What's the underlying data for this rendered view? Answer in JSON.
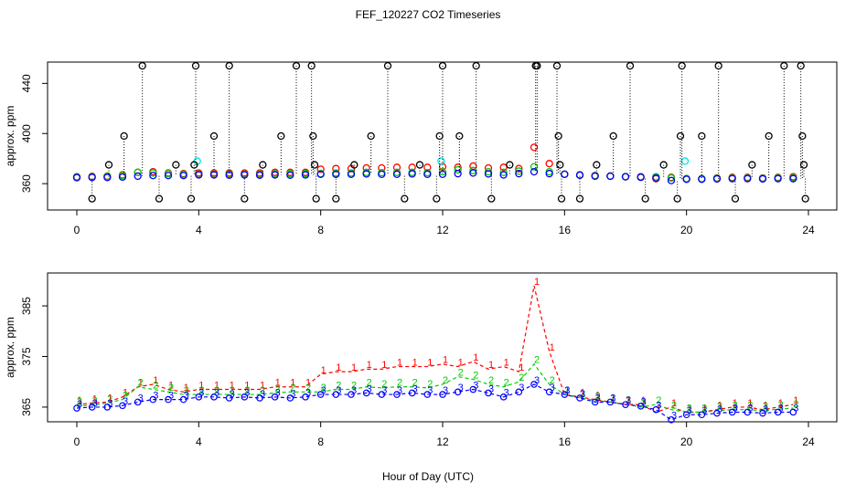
{
  "chart_data": [
    {
      "type": "scatter",
      "title": "FEF_120227  CO2 Timeseries",
      "ylabel": "approx. ppm",
      "xlim": [
        -0.96,
        24.93
      ],
      "ylim": [
        339,
        457
      ],
      "xticks": [
        0,
        4,
        8,
        12,
        16,
        20,
        24
      ],
      "yticks": [
        360,
        400,
        440
      ],
      "x": [
        0,
        0.5,
        1,
        1.5,
        2,
        2.5,
        3,
        3.5,
        4,
        4.5,
        5,
        5.5,
        6,
        6.5,
        7,
        7.5,
        8,
        8.5,
        9,
        9.5,
        10,
        10.5,
        11,
        11.5,
        12,
        12.5,
        13,
        13.5,
        14,
        14.5,
        15,
        15.5,
        16,
        16.5,
        17,
        17.5,
        18,
        18.5,
        19,
        19.5,
        20,
        20.5,
        21,
        21.5,
        22,
        22.5,
        23,
        23.5
      ],
      "series": [
        {
          "color": "#ff0000",
          "values": [
            365.5,
            365.8,
            366,
            367,
            369,
            369.5,
            368.5,
            368,
            368.5,
            368.5,
            368.5,
            368.5,
            368.5,
            369,
            369,
            369,
            371.5,
            372,
            372,
            372.5,
            372.5,
            373,
            373,
            373,
            373.5,
            373,
            374,
            372.5,
            373,
            372,
            389,
            376,
            367.5,
            367,
            366.5,
            366,
            365.5,
            365.5,
            364,
            365,
            364,
            364,
            364.5,
            365,
            365,
            364.5,
            365,
            365.5
          ]
        },
        {
          "color": "#00cd00",
          "values": [
            365.2,
            365.4,
            365.8,
            366.5,
            369,
            368.5,
            368,
            367.5,
            367.5,
            367.5,
            367.5,
            367.5,
            367.5,
            367.8,
            368,
            368,
            368,
            368.5,
            368.5,
            369,
            368.8,
            369,
            369,
            368.8,
            369.5,
            371,
            370.5,
            369.5,
            369,
            370,
            373.5,
            369.5,
            367.5,
            366.8,
            366.3,
            366,
            365.6,
            365,
            365.5,
            364.5,
            364,
            364,
            364.3,
            364.5,
            364.5,
            364.3,
            364.6,
            364.8
          ]
        },
        {
          "color": "#0000ff",
          "values": [
            364.8,
            365,
            365,
            365.3,
            366,
            366.5,
            366.5,
            366.5,
            367,
            367,
            366.8,
            367,
            366.8,
            367,
            366.8,
            367,
            367.5,
            367.5,
            367.5,
            367.8,
            367.5,
            367.5,
            367.8,
            367.5,
            367.5,
            368,
            368.5,
            367.8,
            367,
            368,
            369.5,
            368,
            367.5,
            366.8,
            366,
            366,
            365.5,
            365.2,
            364.5,
            362.5,
            363.5,
            363.5,
            363.8,
            364,
            364,
            363.8,
            364,
            364
          ]
        },
        {
          "color": "#00e5e5",
          "x": [
            3.95,
            11.95,
            19.95
          ],
          "values": [
            378,
            378,
            378
          ]
        },
        {
          "color": "#000000",
          "drops": true,
          "x": [
            0.5,
            1.05,
            1.55,
            2.15,
            2.7,
            3.25,
            3.75,
            3.85,
            3.9,
            4.5,
            5,
            5.5,
            6.1,
            6.7,
            7.2,
            7.7,
            7.75,
            7.8,
            7.85,
            8.5,
            9.1,
            9.65,
            10.2,
            10.75,
            11.25,
            11.8,
            11.9,
            12,
            12.55,
            13.1,
            13.6,
            14.2,
            15.05,
            15.1,
            15.75,
            15.8,
            15.85,
            15.9,
            16.5,
            17.05,
            17.6,
            18.15,
            18.65,
            19.25,
            19.7,
            19.8,
            19.85,
            20.5,
            21.05,
            21.6,
            22.15,
            22.7,
            23.2,
            23.75,
            23.8,
            23.85,
            23.9
          ],
          "values": [
            348,
            375,
            398,
            454,
            348,
            375,
            348,
            375,
            454,
            398,
            454,
            348,
            375,
            398,
            454,
            454,
            398,
            375,
            348,
            348,
            375,
            398,
            454,
            348,
            375,
            348,
            398,
            454,
            398,
            454,
            348,
            375,
            454,
            454,
            454,
            398,
            375,
            348,
            348,
            375,
            398,
            454,
            348,
            375,
            348,
            398,
            454,
            398,
            454,
            348,
            375,
            398,
            454,
            454,
            398,
            375,
            348
          ]
        }
      ]
    },
    {
      "type": "line",
      "ylabel": "approx. ppm",
      "xlabel": "Hour of Day (UTC)",
      "xlim": [
        -0.96,
        24.93
      ],
      "ylim": [
        362.1,
        391.5
      ],
      "xticks": [
        0,
        4,
        8,
        12,
        16,
        20,
        24
      ],
      "yticks": [
        365,
        375,
        385
      ],
      "x": [
        0,
        0.5,
        1,
        1.5,
        2,
        2.5,
        3,
        3.5,
        4,
        4.5,
        5,
        5.5,
        6,
        6.5,
        7,
        7.5,
        8,
        8.5,
        9,
        9.5,
        10,
        10.5,
        11,
        11.5,
        12,
        12.5,
        13,
        13.5,
        14,
        14.5,
        15,
        15.5,
        16,
        16.5,
        17,
        17.5,
        18,
        18.5,
        19,
        19.5,
        20,
        20.5,
        21,
        21.5,
        22,
        22.5,
        23,
        23.5
      ],
      "series": [
        {
          "color": "#ff0000",
          "marker": "1",
          "values": [
            365.5,
            365.8,
            366,
            367,
            369,
            369.5,
            368.5,
            368,
            368.5,
            368.5,
            368.5,
            368.5,
            368.5,
            369,
            369,
            369,
            371.5,
            372,
            372,
            372.5,
            372.5,
            373,
            373,
            373,
            373.5,
            373,
            374,
            372.5,
            373,
            372,
            389,
            376,
            367.5,
            367,
            366.5,
            366,
            365.5,
            365.5,
            364,
            365,
            364,
            364,
            364.5,
            365,
            365,
            364.5,
            365,
            365.5
          ]
        },
        {
          "color": "#00cd00",
          "marker": "2",
          "values": [
            365.2,
            365.4,
            365.8,
            366.5,
            369,
            368.5,
            368,
            367.5,
            367.5,
            367.5,
            367.5,
            367.5,
            367.5,
            367.8,
            368,
            368,
            368,
            368.5,
            368.5,
            369,
            368.8,
            369,
            369,
            368.8,
            369.5,
            371,
            370.5,
            369.5,
            369,
            370,
            373.5,
            369.5,
            367.5,
            366.8,
            366.3,
            366,
            365.6,
            365,
            365.5,
            364.5,
            364,
            364,
            364.3,
            364.5,
            364.5,
            364.3,
            364.6,
            364.8
          ]
        },
        {
          "color": "#0000ff",
          "marker": "3",
          "points": true,
          "values": [
            364.8,
            365,
            365,
            365.3,
            366,
            366.5,
            366.5,
            366.5,
            367,
            367,
            366.8,
            367,
            366.8,
            367,
            366.8,
            367,
            367.5,
            367.5,
            367.5,
            367.8,
            367.5,
            367.5,
            367.8,
            367.5,
            367.5,
            368,
            368.5,
            367.8,
            367,
            368,
            369.5,
            368,
            367.5,
            366.8,
            366,
            366,
            365.5,
            365.2,
            364.5,
            362.5,
            363.5,
            363.5,
            363.8,
            364,
            364,
            363.8,
            364,
            364
          ]
        }
      ]
    }
  ]
}
